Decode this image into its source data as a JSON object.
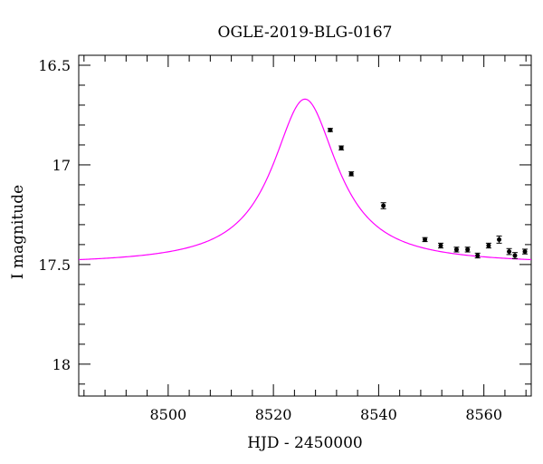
{
  "chart_data": {
    "type": "scatter",
    "title": "OGLE-2019-BLG-0167",
    "xlabel": "HJD - 2450000",
    "ylabel": "I magnitude",
    "xlim": [
      8483,
      8569
    ],
    "ylim": [
      18.16,
      16.45
    ],
    "y_inverted": true,
    "x_ticks": [
      8500,
      8520,
      8540,
      8560
    ],
    "x_tick_labels": [
      "8500",
      "8520",
      "8540",
      "8560"
    ],
    "y_ticks": [
      16.5,
      17,
      17.5,
      18
    ],
    "y_tick_labels": [
      "16.5",
      "17",
      "17.5",
      "18"
    ],
    "grid": false,
    "model_color": "#ff00ff",
    "point_color": "#000000",
    "model": {
      "t0": 8526,
      "baseline_mag": 17.5,
      "peak_mag": 16.67,
      "width_days": 7.5
    },
    "points": [
      {
        "x": 8530.8,
        "y": 16.825,
        "err": 0.008
      },
      {
        "x": 8532.9,
        "y": 16.915,
        "err": 0.01
      },
      {
        "x": 8534.8,
        "y": 17.045,
        "err": 0.01
      },
      {
        "x": 8540.9,
        "y": 17.205,
        "err": 0.015
      },
      {
        "x": 8548.8,
        "y": 17.375,
        "err": 0.01
      },
      {
        "x": 8551.8,
        "y": 17.405,
        "err": 0.012
      },
      {
        "x": 8554.8,
        "y": 17.425,
        "err": 0.012
      },
      {
        "x": 8556.9,
        "y": 17.425,
        "err": 0.012
      },
      {
        "x": 8558.8,
        "y": 17.455,
        "err": 0.012
      },
      {
        "x": 8560.9,
        "y": 17.405,
        "err": 0.012
      },
      {
        "x": 8562.9,
        "y": 17.375,
        "err": 0.018
      },
      {
        "x": 8564.8,
        "y": 17.435,
        "err": 0.015
      },
      {
        "x": 8565.9,
        "y": 17.455,
        "err": 0.015
      },
      {
        "x": 8567.8,
        "y": 17.435,
        "err": 0.012
      }
    ]
  }
}
